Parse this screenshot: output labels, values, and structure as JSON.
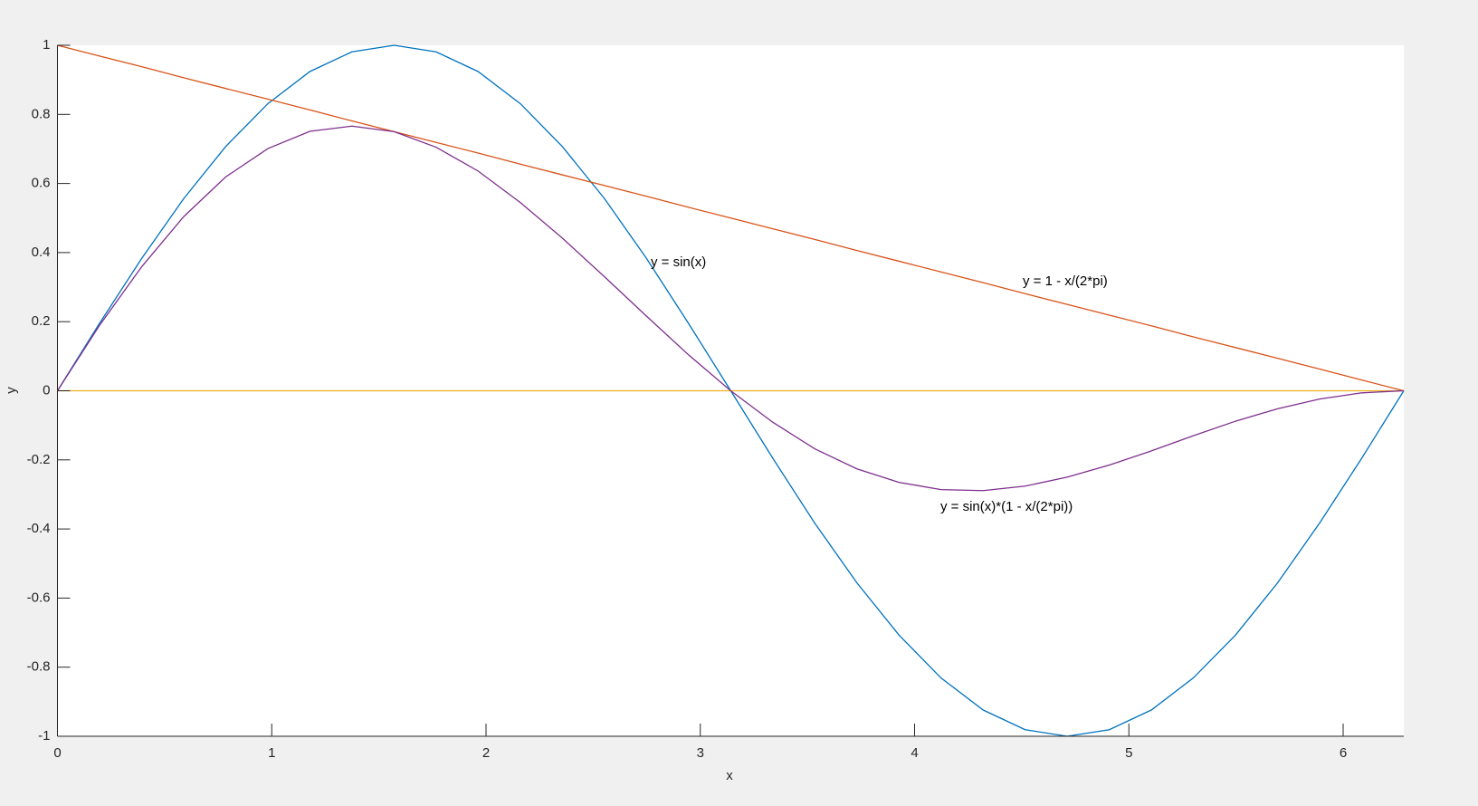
{
  "chart_data": {
    "type": "line",
    "xlabel": "x",
    "ylabel": "y",
    "annotations": [
      "y = sin(x)",
      "y = 1 - x/(2*pi)",
      "y = sin(x)*(1 - x/(2*pi))"
    ],
    "x": [
      0,
      0.196,
      0.393,
      0.589,
      0.785,
      0.982,
      1.178,
      1.374,
      1.571,
      1.767,
      1.963,
      2.16,
      2.356,
      2.553,
      2.749,
      2.945,
      3.142,
      3.338,
      3.534,
      3.731,
      3.927,
      4.123,
      4.32,
      4.516,
      4.712,
      4.909,
      5.105,
      5.301,
      5.498,
      5.694,
      5.89,
      6.087,
      6.283
    ],
    "series": [
      {
        "color": "#0072bd",
        "values": [
          0,
          0.195,
          0.383,
          0.556,
          0.707,
          0.831,
          0.924,
          0.981,
          1,
          0.981,
          0.924,
          0.831,
          0.707,
          0.556,
          0.383,
          0.195,
          0,
          -0.195,
          -0.383,
          -0.556,
          -0.707,
          -0.831,
          -0.924,
          -0.981,
          -1,
          -0.981,
          -0.924,
          -0.831,
          -0.707,
          -0.556,
          -0.383,
          -0.195,
          0
        ]
      },
      {
        "color": "#d95319",
        "values": [
          1,
          0.969,
          0.938,
          0.906,
          0.875,
          0.844,
          0.813,
          0.781,
          0.75,
          0.719,
          0.688,
          0.656,
          0.625,
          0.594,
          0.563,
          0.531,
          0.5,
          0.469,
          0.438,
          0.406,
          0.375,
          0.344,
          0.313,
          0.281,
          0.25,
          0.219,
          0.188,
          0.156,
          0.125,
          0.094,
          0.063,
          0.031,
          0
        ]
      },
      {
        "color": "#edb120",
        "values": [
          0,
          0,
          0,
          0,
          0,
          0,
          0,
          0,
          0,
          0,
          0,
          0,
          0,
          0,
          0,
          0,
          0,
          0,
          0,
          0,
          0,
          0,
          0,
          0,
          0,
          0,
          0,
          0,
          0,
          0,
          0,
          0,
          0
        ]
      },
      {
        "color": "#7e2f8e",
        "values": [
          0,
          0.189,
          0.359,
          0.504,
          0.619,
          0.701,
          0.751,
          0.766,
          0.75,
          0.705,
          0.636,
          0.545,
          0.442,
          0.33,
          0.216,
          0.104,
          0,
          -0.091,
          -0.168,
          -0.226,
          -0.265,
          -0.286,
          -0.289,
          -0.276,
          -0.25,
          -0.215,
          -0.174,
          -0.13,
          -0.088,
          -0.052,
          -0.024,
          -0.006,
          0
        ]
      }
    ],
    "xlim": [
      0,
      6.283
    ],
    "xticks": [
      0,
      1,
      2,
      3,
      4,
      5,
      6
    ],
    "ylim": [
      -1,
      1
    ],
    "yticks": [
      -1,
      -0.8,
      -0.6,
      -0.4,
      -0.2,
      0,
      0.2,
      0.4,
      0.6,
      0.8,
      1
    ],
    "grid": false
  }
}
